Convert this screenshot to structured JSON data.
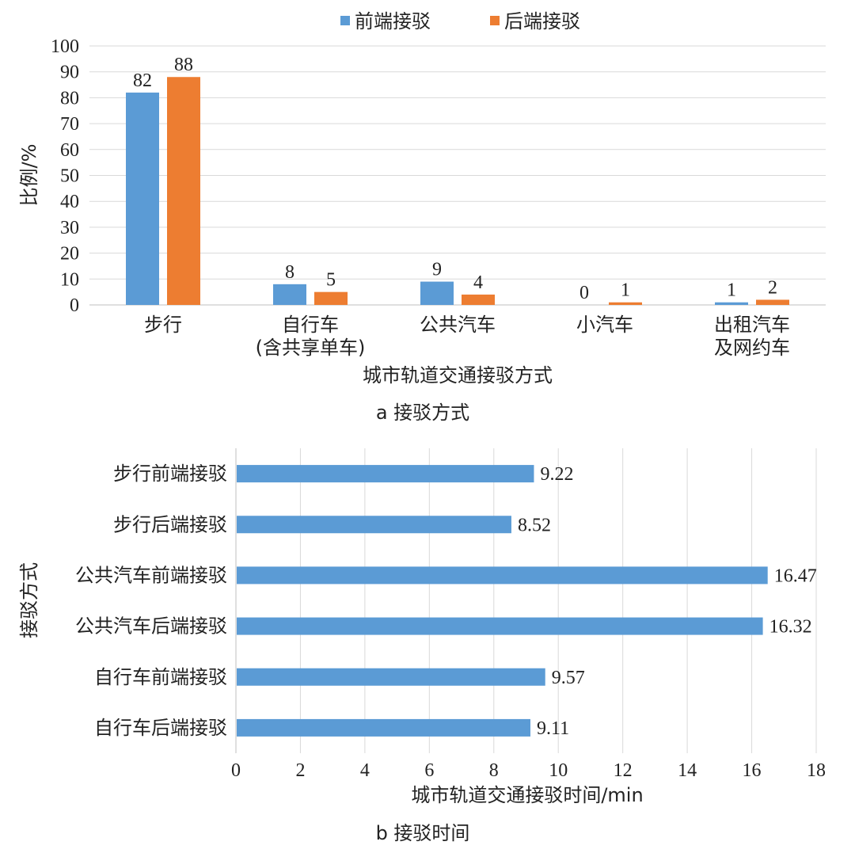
{
  "colors": {
    "front": "#5B9BD5",
    "back": "#ED7D31",
    "grid": "#D9D9D9",
    "axis": "#BFBFBF",
    "text": "#222222"
  },
  "chart_data": [
    {
      "type": "bar",
      "orientation": "vertical",
      "categories": [
        [
          "步行"
        ],
        [
          "自行车",
          "(含共享单车)"
        ],
        [
          "公共汽车"
        ],
        [
          "小汽车"
        ],
        [
          "出租汽车",
          "及网约车"
        ]
      ],
      "series": [
        {
          "name": "前端接驳",
          "color": "#5B9BD5",
          "values": [
            82,
            8,
            9,
            0,
            1
          ]
        },
        {
          "name": "后端接驳",
          "color": "#ED7D31",
          "values": [
            88,
            5,
            4,
            1,
            2
          ]
        }
      ],
      "ylim": [
        0,
        100
      ],
      "yticks": [
        0,
        10,
        20,
        30,
        40,
        50,
        60,
        70,
        80,
        90,
        100
      ],
      "ylabel": "比例/%",
      "xlabel": "城市轨道交通接驳方式",
      "caption": "a 接驳方式",
      "legend": "top-center",
      "grid": true
    },
    {
      "type": "bar",
      "orientation": "horizontal",
      "categories": [
        "步行前端接驳",
        "步行后端接驳",
        "公共汽车前端接驳",
        "公共汽车后端接驳",
        "自行车前端接驳",
        "自行车后端接驳"
      ],
      "values": [
        9.22,
        8.52,
        16.47,
        16.32,
        9.57,
        9.11
      ],
      "value_labels": [
        "9.22",
        "8.52",
        "16.47",
        "16.32",
        "9.57",
        "9.11"
      ],
      "color": "#5B9BD5",
      "xlim": [
        0,
        18
      ],
      "xticks": [
        0,
        2,
        4,
        6,
        8,
        10,
        12,
        14,
        16,
        18
      ],
      "xlabel": "城市轨道交通接驳时间/min",
      "ylabel": "接驳方式",
      "caption": "b 接驳时间",
      "grid": true
    }
  ]
}
